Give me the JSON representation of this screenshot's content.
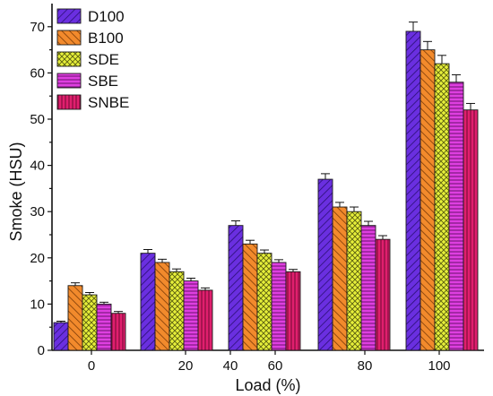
{
  "chart_data": {
    "type": "bar",
    "title": "",
    "xlabel": "Load (%)",
    "ylabel": "Smoke (HSU)",
    "ylim": [
      0,
      75
    ],
    "yticks": [
      0,
      10,
      20,
      30,
      40,
      50,
      60,
      70
    ],
    "xticks": [
      "0",
      "20",
      "40",
      "60",
      "80",
      "100"
    ],
    "categories": [
      "0",
      "20",
      "40",
      "80",
      "100"
    ],
    "legend_position": "top-left",
    "grid": false,
    "error_bars": true,
    "series": [
      {
        "name": "D100",
        "color": "#6a2fe0",
        "pattern": "diagonal-hatch",
        "values": [
          6,
          21,
          27,
          37,
          69
        ],
        "errors": [
          0.3,
          0.8,
          1.0,
          1.2,
          2.0
        ]
      },
      {
        "name": "B100",
        "color": "#f28a2c",
        "pattern": "diagonal-hatch",
        "values": [
          14,
          19,
          23,
          31,
          65
        ],
        "errors": [
          0.6,
          0.7,
          0.8,
          1.0,
          1.8
        ]
      },
      {
        "name": "SDE",
        "color": "#e6ef3a",
        "pattern": "crosshatch",
        "values": [
          12,
          17,
          21,
          30,
          62
        ],
        "errors": [
          0.5,
          0.6,
          0.7,
          1.0,
          1.8
        ]
      },
      {
        "name": "SBE",
        "color": "#de3fe0",
        "pattern": "horizontal-lines",
        "values": [
          10,
          15,
          19,
          27,
          58
        ],
        "errors": [
          0.4,
          0.6,
          0.6,
          0.9,
          1.6
        ]
      },
      {
        "name": "SNBE",
        "color": "#e01f6e",
        "pattern": "vertical-lines",
        "values": [
          8,
          13,
          17,
          24,
          52
        ],
        "errors": [
          0.4,
          0.5,
          0.5,
          0.8,
          1.4
        ]
      }
    ]
  }
}
